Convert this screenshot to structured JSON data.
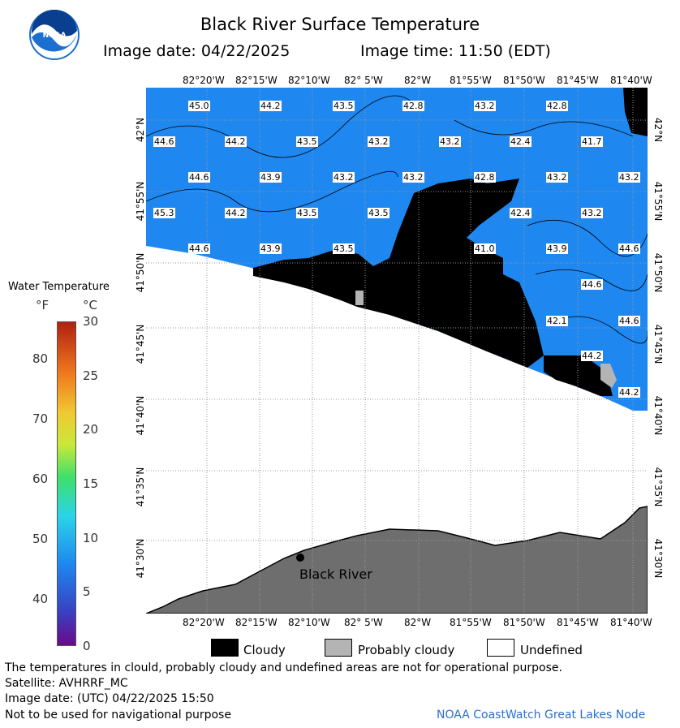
{
  "header": {
    "title": "Black River Surface Temperature",
    "image_date": "Image date: 04/22/2025",
    "image_time": "Image time: 11:50 (EDT)",
    "logo_text": "NOAA"
  },
  "colorbar": {
    "title": "Water Temperature",
    "unit_f": "°F",
    "unit_c": "°C",
    "f_ticks": [
      "80",
      "70",
      "60",
      "50",
      "40"
    ],
    "c_ticks": [
      "30",
      "25",
      "20",
      "15",
      "10",
      "5",
      "0"
    ]
  },
  "map": {
    "lon_labels": [
      "82°20'W",
      "82°15'W",
      "82°10'W",
      "82° 5'W",
      "82°W",
      "81°55'W",
      "81°50'W",
      "81°45'W",
      "81°40'W"
    ],
    "lat_labels": [
      "42°N",
      "41°55'N",
      "41°50'N",
      "41°45'N",
      "41°40'N",
      "41°35'N",
      "41°30'N"
    ],
    "place_label": "Black River",
    "temperatures": [
      "45.0",
      "44.2",
      "43.5",
      "42.8",
      "43.2",
      "42.8",
      "44.6",
      "44.2",
      "43.5",
      "43.2",
      "43.2",
      "42.4",
      "41.7",
      "44.6",
      "43.9",
      "43.2",
      "43.2",
      "42.8",
      "43.2",
      "43.2",
      "45.3",
      "44.2",
      "43.5",
      "43.5",
      "42.4",
      "43.2",
      "44.6",
      "43.9",
      "43.5",
      "41.0",
      "43.9",
      "44.6",
      "44.6",
      "42.1",
      "44.6",
      "44.2",
      "44.2"
    ],
    "colors": {
      "water": "#1e87f0",
      "cloud": "#000000",
      "prob_cloud": "#b4b4b4",
      "land": "#6e6e6e"
    }
  },
  "legend": {
    "cloudy": "Cloudy",
    "probably_cloudy": "Probably cloudy",
    "undefined": "Undefined"
  },
  "footer": {
    "note": "The temperatures in clould, probably cloudy and undefined areas are not for operational purpose.",
    "satellite": "Satellite: AVHRRF_MC",
    "utc_date": "Image date: (UTC) 04/22/2025  15:50",
    "nav_warning": "Not to be used for navigational purpose",
    "credit": "NOAA CoastWatch Great Lakes Node"
  }
}
